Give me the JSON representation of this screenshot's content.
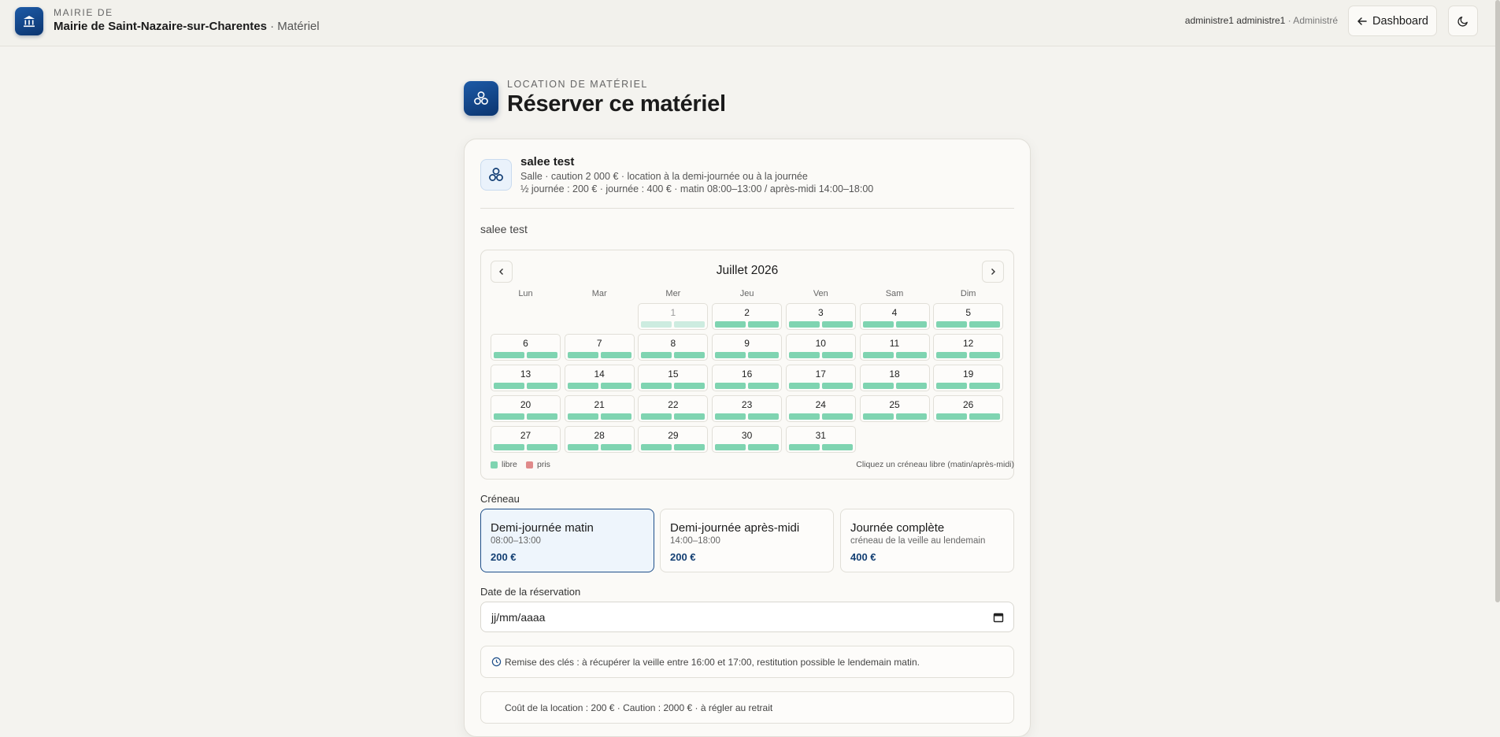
{
  "header": {
    "org_label": "MAIRIE DE",
    "org_name": "Mairie de Saint-Nazaire-sur-Charentes",
    "section": "· Matériel",
    "user": "administre1 administre1",
    "role": "· Administré",
    "dashboard_button": "Dashboard"
  },
  "page": {
    "kicker": "LOCATION DE MATÉRIEL",
    "title": "Réserver ce matériel"
  },
  "item": {
    "name": "salee test",
    "details": [
      "Salle · caution 2 000 € · location à la demi-journée ou à la journée",
      "½ journée : 200 € · journée : 400 € · matin 08:00–13:00 / après-midi 14:00–18:00"
    ],
    "description": "salee test"
  },
  "calendar": {
    "month": "Juillet 2026",
    "weekdays": [
      "Lun",
      "Mar",
      "Mer",
      "Jeu",
      "Ven",
      "Sam",
      "Dim"
    ],
    "weeks": [
      [
        null,
        null,
        1,
        2,
        3,
        4,
        5
      ],
      [
        6,
        7,
        8,
        9,
        10,
        11,
        12
      ],
      [
        13,
        14,
        15,
        16,
        17,
        18,
        19
      ],
      [
        20,
        21,
        22,
        23,
        24,
        25,
        26
      ],
      [
        27,
        28,
        29,
        30,
        31,
        null,
        null
      ]
    ],
    "unavailable_days": [
      1
    ],
    "free_color": "#7fd4b1",
    "taken_color": "#e08a8a",
    "legend_free": "libre",
    "legend_taken": "pris",
    "hint": "Cliquez un créneau libre (matin/après-midi)"
  },
  "slot": {
    "label": "Créneau",
    "selected": 0,
    "options": [
      {
        "title": "Demi-journée matin",
        "subtitle": "08:00–13:00",
        "price": "200 €"
      },
      {
        "title": "Demi-journée après-midi",
        "subtitle": "14:00–18:00",
        "price": "200 €"
      },
      {
        "title": "Journée complète",
        "subtitle": "créneau de la veille au lendemain",
        "price": "400 €"
      }
    ]
  },
  "date": {
    "label": "Date de la réservation",
    "placeholder": "jj/mm/aaaa"
  },
  "info": "Remise des clés : à récupérer la veille entre 16:00 et 17:00, restitution possible le lendemain matin.",
  "cost": "Coût de la location : 200 € · Caution : 2000 € · à régler au retrait"
}
